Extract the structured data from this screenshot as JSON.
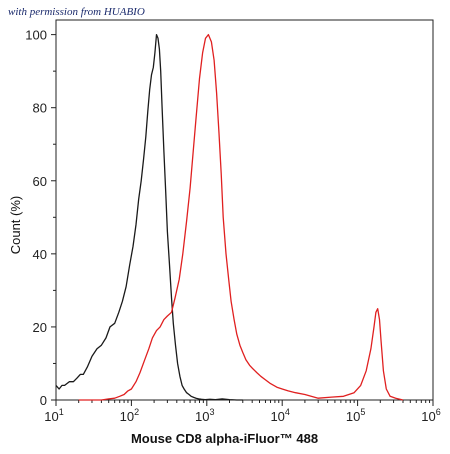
{
  "watermark": "with permission from HUABIO",
  "chart_data": {
    "type": "line",
    "xlabel": "Mouse CD8 alpha-iFluor™ 488",
    "ylabel": "Count (%)",
    "xscale": "log",
    "xlim": [
      10,
      1000000
    ],
    "ylim": [
      0,
      100
    ],
    "x_ticks": [
      10,
      100,
      1000,
      10000,
      100000,
      1000000
    ],
    "x_tick_labels": [
      {
        "base": "10",
        "exp": "1"
      },
      {
        "base": "10",
        "exp": "2"
      },
      {
        "base": "10",
        "exp": "3"
      },
      {
        "base": "10",
        "exp": "4"
      },
      {
        "base": "10",
        "exp": "5"
      },
      {
        "base": "10",
        "exp": "6"
      }
    ],
    "y_ticks": [
      0,
      20,
      40,
      60,
      80,
      100
    ],
    "grid": false,
    "series": [
      {
        "color": "#1a1a1a",
        "x": [
          10,
          11,
          12,
          13,
          15,
          17,
          19,
          21,
          23,
          26,
          30,
          35,
          40,
          46,
          52,
          60,
          68,
          76,
          85,
          95,
          105,
          115,
          125,
          135,
          145,
          155,
          165,
          175,
          185,
          195,
          205,
          215,
          225,
          235,
          245,
          255,
          270,
          285,
          300,
          320,
          340,
          360,
          385,
          410,
          440,
          470,
          500,
          540,
          580,
          620,
          670,
          720,
          780,
          850,
          950,
          1100,
          1300,
          1600,
          2000,
          2500,
          3000
        ],
        "y": [
          4,
          3,
          4,
          4,
          5,
          5,
          6,
          7,
          7,
          9,
          12,
          14,
          15,
          17,
          20,
          21,
          24,
          27,
          31,
          37,
          42,
          48,
          55,
          60,
          66,
          72,
          79,
          85,
          89,
          91,
          95,
          100,
          99,
          96,
          90,
          80,
          68,
          57,
          46,
          37,
          28,
          21,
          15,
          10,
          6.5,
          4,
          3,
          2,
          1.5,
          1,
          0.7,
          0.5,
          0.3,
          0.2,
          0.1,
          0.2,
          0.1,
          0.3,
          0.1,
          0,
          0
        ]
      },
      {
        "color": "#e02020",
        "x": [
          20,
          30,
          40,
          50,
          60,
          70,
          80,
          90,
          100,
          115,
          130,
          150,
          170,
          190,
          215,
          240,
          270,
          300,
          340,
          380,
          430,
          480,
          540,
          600,
          660,
          720,
          800,
          880,
          960,
          1050,
          1150,
          1250,
          1350,
          1450,
          1550,
          1650,
          1800,
          1950,
          2100,
          2300,
          2500,
          2750,
          3000,
          3300,
          3700,
          4100,
          4600,
          5200,
          6000,
          7000,
          8500,
          10000,
          12000,
          15000,
          20000,
          30000,
          45000,
          65000,
          90000,
          110000,
          130000,
          150000,
          165000,
          175000,
          185000,
          195000,
          205000,
          220000,
          240000,
          270000,
          320000,
          400000
        ],
        "y": [
          0,
          0,
          0,
          0.3,
          0.5,
          1,
          1.5,
          2.5,
          3,
          5,
          7.5,
          11,
          14,
          17,
          19,
          20,
          22,
          23,
          24,
          28,
          33,
          40,
          49,
          58,
          68,
          77,
          88,
          95,
          99,
          100,
          98,
          93,
          84,
          73,
          62,
          50,
          40,
          33,
          27,
          22,
          18,
          15,
          13,
          11,
          9.5,
          8.5,
          7.5,
          6.5,
          5.5,
          4.5,
          3.5,
          3,
          2.5,
          2,
          1.5,
          0.5,
          0.8,
          1,
          2,
          4,
          8,
          14,
          20,
          24,
          25,
          22,
          16,
          8,
          3,
          1,
          0.5,
          0
        ]
      }
    ]
  }
}
